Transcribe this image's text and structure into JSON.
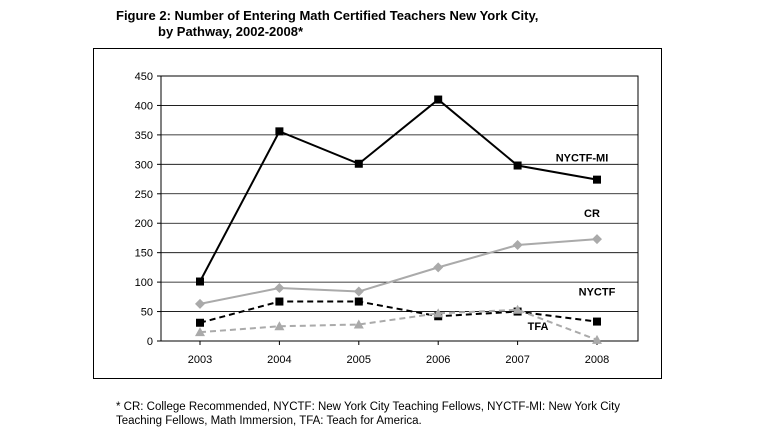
{
  "figure": {
    "title_line1": "Figure 2: Number of Entering Math Certified Teachers New York City,",
    "title_line2": "by Pathway, 2002-2008*",
    "footnote_line1": "* CR: College Recommended, NYCTF: New York City Teaching Fellows, NYCTF-MI: New York City",
    "footnote_line2": "Teaching Fellows, Math Immersion, TFA: Teach for America."
  },
  "chart_data": {
    "type": "line",
    "title": "Figure 2: Number of Entering Math Certified Teachers New York City, by Pathway, 2002-2008*",
    "xlabel": "",
    "ylabel": "",
    "categories": [
      "2003",
      "2004",
      "2005",
      "2006",
      "2007",
      "2008"
    ],
    "ylim": [
      0,
      450
    ],
    "yticks": [
      0,
      50,
      100,
      150,
      200,
      250,
      300,
      350,
      400,
      450
    ],
    "grid": "horizontal",
    "series": [
      {
        "name": "NYCTF-MI",
        "values": [
          101,
          356,
          301,
          410,
          298,
          274
        ],
        "color": "#000000",
        "dash": "solid",
        "marker": "square",
        "label_position": "upper-right"
      },
      {
        "name": "CR",
        "values": [
          63,
          90,
          84,
          125,
          163,
          173
        ],
        "color": "#aaaaaa",
        "dash": "solid",
        "marker": "diamond",
        "label_position": "right"
      },
      {
        "name": "NYCTF",
        "values": [
          31,
          67,
          67,
          42,
          50,
          33
        ],
        "color": "#000000",
        "dash": "dashed",
        "marker": "square",
        "label_position": "right"
      },
      {
        "name": "TFA",
        "values": [
          15,
          25,
          28,
          47,
          53,
          2
        ],
        "color": "#aaaaaa",
        "dash": "dashed",
        "marker": "triangle",
        "label_position": "below"
      }
    ]
  }
}
